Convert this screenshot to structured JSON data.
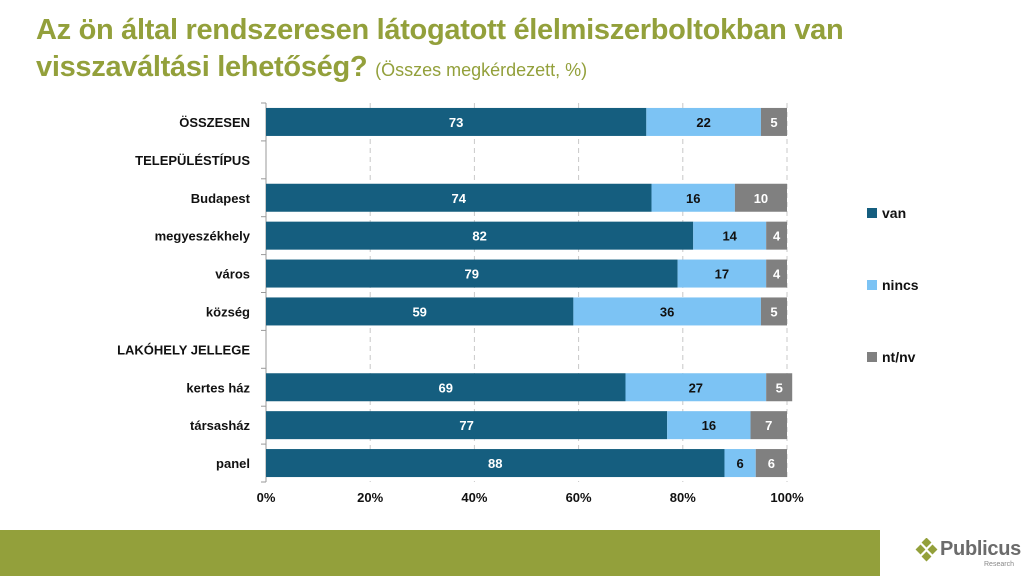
{
  "title": {
    "main": "Az ön által rendszeresen látogatott élelmiszerboltokban van visszaváltási lehetőség?",
    "subtitle": "(Összes megkérdezett, %)"
  },
  "brand": {
    "name": "Publicus",
    "tagline": "Research",
    "accent_color": "#93a03b"
  },
  "chart_data": {
    "type": "bar",
    "orientation": "horizontal",
    "stacked": true,
    "title": "Az ön által rendszeresen látogatott élelmiszerboltokban van visszaváltási lehetőség?",
    "subtitle": "(Összes megkérdezett, %)",
    "categories": [
      "ÖSSZESEN",
      "TELEPÜLÉSTÍPUS",
      "Budapest",
      "megyeszékhely",
      "város",
      "község",
      "LAKÓHELY JELLEGE",
      "kertes ház",
      "társasház",
      "panel"
    ],
    "category_is_header": [
      true,
      true,
      false,
      false,
      false,
      false,
      true,
      false,
      false,
      false
    ],
    "series": [
      {
        "name": "van",
        "color": "#155e7f",
        "label_color": "#ffffff",
        "values": [
          73,
          null,
          74,
          82,
          79,
          59,
          null,
          69,
          77,
          88
        ]
      },
      {
        "name": "nincs",
        "color": "#7cc3f4",
        "label_color": "#111111",
        "values": [
          22,
          null,
          16,
          14,
          17,
          36,
          null,
          27,
          16,
          6
        ]
      },
      {
        "name": "nt/nv",
        "color": "#808080",
        "label_color": "#ffffff",
        "values": [
          5,
          null,
          10,
          4,
          4,
          5,
          null,
          5,
          7,
          6
        ]
      }
    ],
    "xlim": [
      0,
      100
    ],
    "xticks": [
      0,
      20,
      40,
      60,
      80,
      100
    ],
    "xtick_labels": [
      "0%",
      "20%",
      "40%",
      "60%",
      "80%",
      "100%"
    ],
    "xlabel": "",
    "ylabel": "",
    "grid": "vertical dashed",
    "legend_position": "right"
  }
}
